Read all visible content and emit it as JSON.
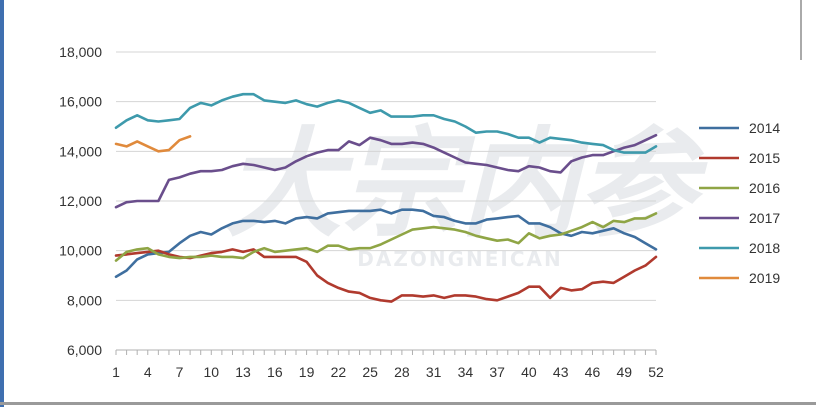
{
  "chart_data": {
    "type": "line",
    "title": "",
    "xlabel": "",
    "ylabel": "",
    "ylim": [
      6000,
      18000
    ],
    "y_ticks": [
      6000,
      8000,
      10000,
      12000,
      14000,
      16000,
      18000
    ],
    "y_tick_labels": [
      "6,000",
      "8,000",
      "10,000",
      "12,000",
      "14,000",
      "16,000",
      "18,000"
    ],
    "xlim": [
      1,
      52
    ],
    "x_ticks": [
      1,
      4,
      7,
      10,
      13,
      16,
      19,
      22,
      25,
      28,
      31,
      34,
      37,
      40,
      43,
      46,
      49,
      52
    ],
    "x_tick_labels": [
      "1",
      "4",
      "7",
      "10",
      "13",
      "16",
      "19",
      "22",
      "25",
      "28",
      "31",
      "34",
      "37",
      "40",
      "43",
      "46",
      "49",
      "52"
    ],
    "grid": "horizontal",
    "legend_position": "right",
    "watermark": {
      "main": "大宗内参",
      "sub": "DAZONGNEICAN"
    },
    "series": [
      {
        "name": "2014",
        "color": "#3F6F9F",
        "x": [
          1,
          2,
          3,
          4,
          5,
          6,
          7,
          8,
          9,
          10,
          11,
          12,
          13,
          14,
          15,
          16,
          17,
          18,
          19,
          20,
          21,
          22,
          23,
          24,
          25,
          26,
          27,
          28,
          29,
          30,
          31,
          32,
          33,
          34,
          35,
          36,
          37,
          38,
          39,
          40,
          41,
          42,
          43,
          44,
          45,
          46,
          47,
          48,
          49,
          50,
          51,
          52
        ],
        "values": [
          8950,
          9200,
          9650,
          9850,
          9900,
          9950,
          10300,
          10600,
          10750,
          10650,
          10900,
          11100,
          11200,
          11200,
          11150,
          11200,
          11100,
          11300,
          11350,
          11300,
          11500,
          11550,
          11600,
          11600,
          11600,
          11650,
          11500,
          11650,
          11650,
          11600,
          11400,
          11350,
          11200,
          11100,
          11100,
          11250,
          11300,
          11350,
          11400,
          11100,
          11100,
          10950,
          10700,
          10600,
          10750,
          10700,
          10800,
          10900,
          10700,
          10550,
          10300,
          10050
        ]
      },
      {
        "name": "2015",
        "color": "#B03A2E",
        "x": [
          1,
          2,
          3,
          4,
          5,
          6,
          7,
          8,
          9,
          10,
          11,
          12,
          13,
          14,
          15,
          16,
          17,
          18,
          19,
          20,
          21,
          22,
          23,
          24,
          25,
          26,
          27,
          28,
          29,
          30,
          31,
          32,
          33,
          34,
          35,
          36,
          37,
          38,
          39,
          40,
          41,
          42,
          43,
          44,
          45,
          46,
          47,
          48,
          49,
          50,
          51,
          52
        ],
        "values": [
          9800,
          9850,
          9900,
          9950,
          10000,
          9850,
          9750,
          9700,
          9800,
          9900,
          9950,
          10050,
          9950,
          10050,
          9750,
          9750,
          9750,
          9750,
          9550,
          9000,
          8700,
          8500,
          8350,
          8300,
          8100,
          8000,
          7950,
          8200,
          8200,
          8150,
          8200,
          8100,
          8200,
          8200,
          8150,
          8050,
          8000,
          8150,
          8300,
          8550,
          8550,
          8100,
          8500,
          8400,
          8450,
          8700,
          8750,
          8700,
          8950,
          9200,
          9400,
          9750
        ]
      },
      {
        "name": "2016",
        "color": "#8FA545",
        "x": [
          1,
          2,
          3,
          4,
          5,
          6,
          7,
          8,
          9,
          10,
          11,
          12,
          13,
          14,
          15,
          16,
          17,
          18,
          19,
          20,
          21,
          22,
          23,
          24,
          25,
          26,
          27,
          28,
          29,
          30,
          31,
          32,
          33,
          34,
          35,
          36,
          37,
          38,
          39,
          40,
          41,
          42,
          43,
          44,
          45,
          46,
          47,
          48,
          49,
          50,
          51,
          52
        ],
        "values": [
          9600,
          9950,
          10050,
          10100,
          9850,
          9750,
          9700,
          9750,
          9750,
          9800,
          9750,
          9750,
          9700,
          9950,
          10100,
          9950,
          10000,
          10050,
          10100,
          9950,
          10200,
          10200,
          10050,
          10100,
          10100,
          10250,
          10450,
          10650,
          10850,
          10900,
          10950,
          10900,
          10850,
          10750,
          10600,
          10500,
          10400,
          10450,
          10300,
          10700,
          10500,
          10600,
          10650,
          10800,
          10950,
          11150,
          10950,
          11200,
          11150,
          11300,
          11300,
          11500
        ]
      },
      {
        "name": "2017",
        "color": "#6A4E8C",
        "x": [
          1,
          2,
          3,
          4,
          5,
          6,
          7,
          8,
          9,
          10,
          11,
          12,
          13,
          14,
          15,
          16,
          17,
          18,
          19,
          20,
          21,
          22,
          23,
          24,
          25,
          26,
          27,
          28,
          29,
          30,
          31,
          32,
          33,
          34,
          35,
          36,
          37,
          38,
          39,
          40,
          41,
          42,
          43,
          44,
          45,
          46,
          47,
          48,
          49,
          50,
          51,
          52
        ],
        "values": [
          11750,
          11950,
          12000,
          12000,
          12000,
          12850,
          12950,
          13100,
          13200,
          13200,
          13250,
          13400,
          13500,
          13450,
          13350,
          13250,
          13350,
          13600,
          13800,
          13950,
          14050,
          14050,
          14400,
          14250,
          14550,
          14450,
          14300,
          14300,
          14350,
          14300,
          14150,
          13950,
          13750,
          13550,
          13500,
          13450,
          13350,
          13250,
          13200,
          13400,
          13350,
          13200,
          13150,
          13600,
          13750,
          13850,
          13850,
          14000,
          14150,
          14250,
          14450,
          14650
        ]
      },
      {
        "name": "2018",
        "color": "#3E9AAC",
        "x": [
          1,
          2,
          3,
          4,
          5,
          6,
          7,
          8,
          9,
          10,
          11,
          12,
          13,
          14,
          15,
          16,
          17,
          18,
          19,
          20,
          21,
          22,
          23,
          24,
          25,
          26,
          27,
          28,
          29,
          30,
          31,
          32,
          33,
          34,
          35,
          36,
          37,
          38,
          39,
          40,
          41,
          42,
          43,
          44,
          45,
          46,
          47,
          48,
          49,
          50,
          51,
          52
        ],
        "values": [
          14950,
          15250,
          15450,
          15250,
          15200,
          15250,
          15300,
          15750,
          15950,
          15850,
          16050,
          16200,
          16300,
          16300,
          16050,
          16000,
          15950,
          16050,
          15900,
          15800,
          15950,
          16050,
          15950,
          15750,
          15550,
          15650,
          15400,
          15400,
          15400,
          15450,
          15450,
          15300,
          15200,
          15000,
          14750,
          14800,
          14800,
          14700,
          14550,
          14550,
          14350,
          14550,
          14500,
          14450,
          14350,
          14300,
          14250,
          14050,
          13950,
          13950,
          13950,
          14200
        ]
      },
      {
        "name": "2019",
        "color": "#E08A3C",
        "x": [
          1,
          2,
          3,
          4,
          5,
          6,
          7,
          8
        ],
        "values": [
          14300,
          14200,
          14400,
          14200,
          14000,
          14050,
          14450,
          14600
        ]
      }
    ]
  }
}
